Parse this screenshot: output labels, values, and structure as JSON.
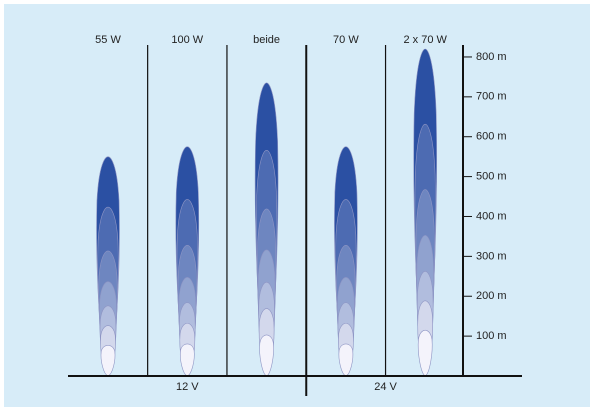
{
  "chart_data": {
    "type": "beam",
    "groups": [
      {
        "name": "12 V",
        "categories": [
          "55 W",
          "100 W",
          "beide"
        ],
        "values": [
          550,
          575,
          735
        ]
      },
      {
        "name": "24 V",
        "categories": [
          "70 W",
          "2 x 70 W"
        ],
        "values": [
          575,
          820
        ]
      }
    ],
    "color": "#2b50a3",
    "ylim": [
      0,
      830
    ],
    "yticks": [
      {
        "value": 100,
        "label": "100 m"
      },
      {
        "value": 200,
        "label": "200 m"
      },
      {
        "value": 300,
        "label": "300 m"
      },
      {
        "value": 400,
        "label": "400 m"
      },
      {
        "value": 500,
        "label": "500 m"
      },
      {
        "value": 600,
        "label": "600 m"
      },
      {
        "value": 700,
        "label": "700 m"
      },
      {
        "value": 800,
        "label": "800 m"
      }
    ]
  }
}
